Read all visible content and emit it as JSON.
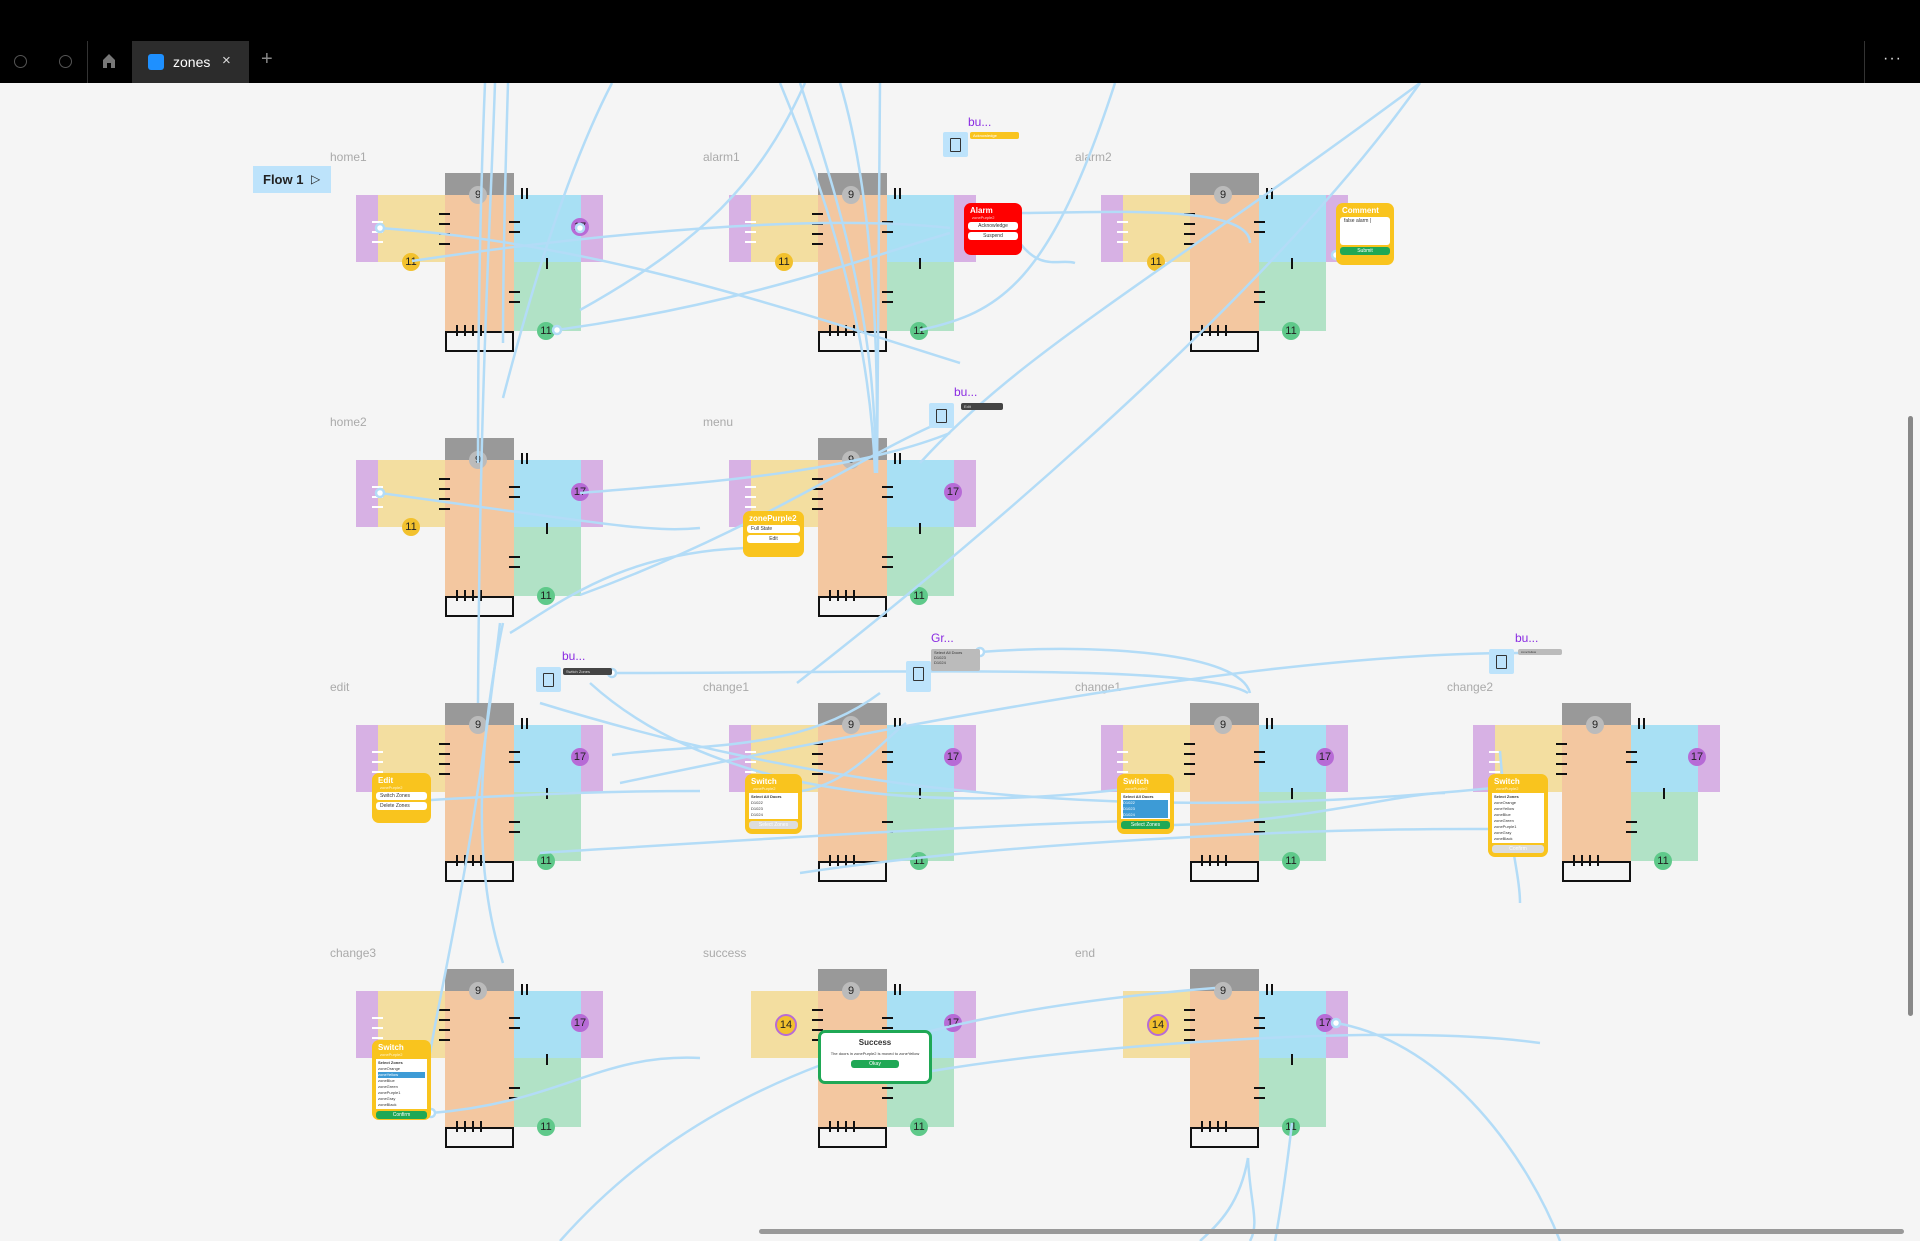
{
  "tabbar": {
    "tab_title": "zones",
    "close_icon": "×",
    "new_tab": "+",
    "more": "···"
  },
  "canvas": {
    "flow_button": "Flow 1",
    "play_icon": "▷"
  },
  "colors": {
    "wire": "#b3dcf7",
    "purple": "#d7b1e4",
    "yellow": "#f3dea0",
    "orange": "#f3c7a0",
    "blue": "#a8e0f4",
    "green": "#b1e2c6",
    "gray": "#999999"
  },
  "frames": [
    {
      "label": "home1",
      "col": 0,
      "row": 0,
      "left": true,
      "badges": {
        "top": "9",
        "right": "17",
        "yellow": "11",
        "green": "11"
      }
    },
    {
      "label": "alarm1",
      "col": 1,
      "row": 0,
      "left": true,
      "badges": {
        "top": "9",
        "right": "",
        "yellow": "11",
        "green": "11"
      }
    },
    {
      "label": "alarm2",
      "col": 2,
      "row": 0,
      "left": true,
      "badges": {
        "top": "9",
        "right": "",
        "yellow": "11",
        "green": "11"
      }
    },
    {
      "label": "home2",
      "col": 0,
      "row": 1,
      "left": true,
      "badges": {
        "top": "9",
        "right": "17",
        "yellow": "11",
        "green": "11"
      }
    },
    {
      "label": "menu",
      "col": 1,
      "row": 1,
      "left": true,
      "badges": {
        "top": "9",
        "right": "17",
        "yellow": "",
        "green": "11"
      }
    },
    {
      "label": "edit",
      "col": 0,
      "row": 2,
      "left": true,
      "badges": {
        "top": "9",
        "right": "17",
        "yellow": "",
        "green": "11"
      }
    },
    {
      "label": "change1",
      "col": 1,
      "row": 2,
      "left": true,
      "badges": {
        "top": "9",
        "right": "17",
        "yellow": "",
        "green": "11"
      }
    },
    {
      "label": "change1",
      "col": 2,
      "row": 2,
      "left": true,
      "badges": {
        "top": "9",
        "right": "17",
        "yellow": "",
        "green": "11"
      }
    },
    {
      "label": "change2",
      "col": 3,
      "row": 2,
      "left": true,
      "badges": {
        "top": "9",
        "right": "17",
        "yellow": "",
        "green": "11"
      }
    },
    {
      "label": "change3",
      "col": 0,
      "row": 3,
      "left": true,
      "badges": {
        "top": "9",
        "right": "17",
        "yellow": "",
        "green": "11"
      }
    },
    {
      "label": "success",
      "col": 1,
      "row": 3,
      "left": false,
      "badges": {
        "top": "9",
        "right": "17",
        "yellow": "14",
        "green": "11"
      }
    },
    {
      "label": "end",
      "col": 2,
      "row": 3,
      "left": false,
      "badges": {
        "top": "9",
        "right": "17",
        "yellow": "14",
        "green": "11"
      }
    }
  ],
  "components": {
    "alarm_tag": {
      "name": "bu...",
      "button": "Acknowledge"
    },
    "menu_tag": {
      "name": "bu...",
      "button": "Edit"
    },
    "edit_tag": {
      "name": "bu...",
      "button": "Switch Zones"
    },
    "group_tag": {
      "name": "Gr...",
      "rows": [
        "Select All Doors",
        "D1023",
        "D1024"
      ]
    },
    "change2_tag": {
      "name": "bu...",
      "button": "zoneYellow"
    }
  },
  "dialogs": {
    "alarm": {
      "title": "Alarm",
      "subtitle": "zonePurple2",
      "buttons": [
        "Acknowledge",
        "Suspend"
      ]
    },
    "comment": {
      "title": "Comment",
      "value": "false alarm |",
      "button": "Submit"
    },
    "zone_menu": {
      "title": "zonePurple2",
      "items": [
        "Full State",
        "Edit"
      ]
    },
    "edit": {
      "title": "Edit",
      "subtitle": "zonePurple2",
      "items": [
        "Switch Zones",
        "Delete Zones"
      ]
    },
    "switch_doors": {
      "title": "Switch",
      "subtitle": "zonePurple2",
      "header": "Select All Doors",
      "doors": [
        "D1022",
        "D1023",
        "D1024"
      ],
      "button": "Select Zones"
    },
    "switch_zones": {
      "title": "Switch",
      "subtitle": "zonePurple2",
      "header": "Select Zones",
      "zones": [
        "zoneOrange",
        "zoneYellow",
        "zoneBlue",
        "zoneGreen",
        "zonePurple1",
        "zoneGray",
        "zoneBlack"
      ],
      "button": "Confirm"
    },
    "success": {
      "title": "Success",
      "message": "The doors in zonePurple2 is moved to zoneYellow",
      "button": "Okay"
    }
  }
}
